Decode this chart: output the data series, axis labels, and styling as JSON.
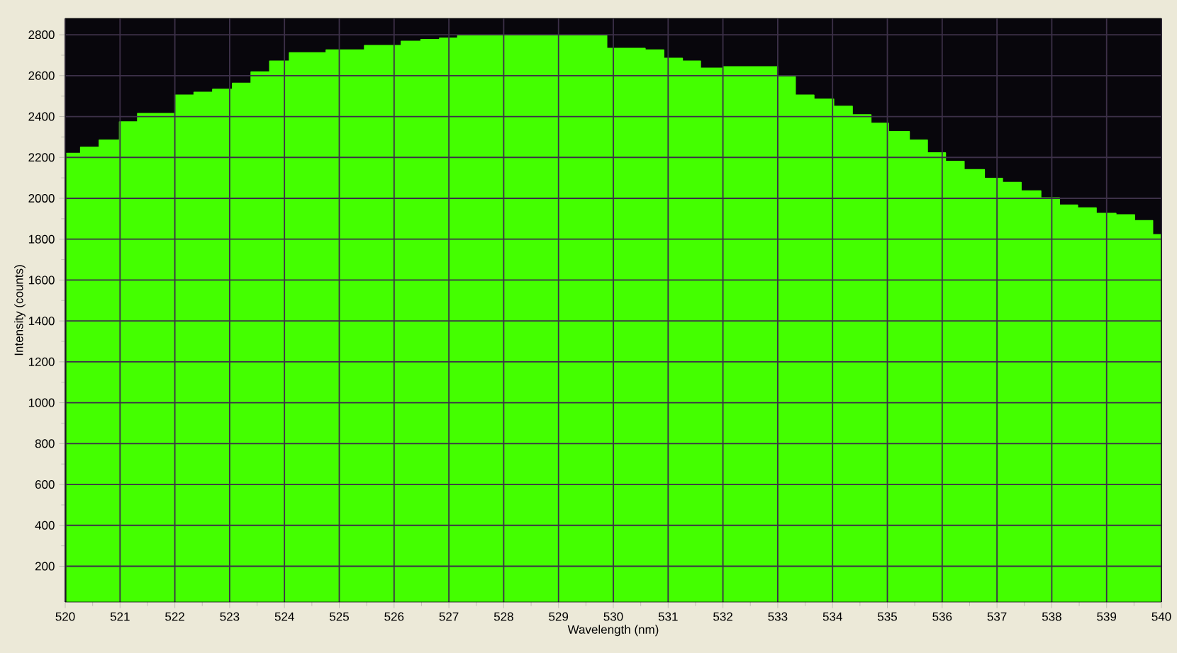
{
  "chart_data": {
    "type": "step",
    "xlabel": "Wavelength (nm)",
    "ylabel": "Intensity (counts)",
    "color": "#44ff00",
    "grid": true,
    "xlim": [
      520,
      540
    ],
    "ylim": [
      25,
      2880
    ],
    "xticks": [
      520,
      521,
      522,
      523,
      524,
      525,
      526,
      527,
      528,
      529,
      530,
      531,
      532,
      533,
      534,
      535,
      536,
      537,
      538,
      539,
      540
    ],
    "yticks": [
      200,
      400,
      600,
      800,
      1000,
      1200,
      1400,
      1600,
      1800,
      2000,
      2200,
      2400,
      2600,
      2800
    ],
    "x": [
      520.02,
      520.28,
      520.62,
      520.99,
      521.32,
      522.0,
      522.35,
      522.69,
      523.05,
      523.39,
      523.73,
      524.09,
      524.76,
      525.46,
      526.13,
      526.49,
      526.83,
      527.16,
      529.88,
      530.58,
      530.92,
      531.26,
      531.59,
      532.0,
      533.0,
      533.32,
      533.66,
      534.02,
      534.36,
      534.7,
      535.02,
      535.4,
      535.73,
      536.06,
      536.4,
      536.77,
      537.1,
      537.44,
      537.8,
      538.14,
      538.47,
      538.81,
      539.17,
      539.51,
      539.84,
      540
    ],
    "values": [
      2220,
      2250,
      2285,
      2374,
      2415,
      2505,
      2519,
      2533,
      2563,
      2618,
      2671,
      2712,
      2726,
      2747,
      2768,
      2777,
      2784,
      2797,
      2733,
      2726,
      2685,
      2671,
      2636,
      2643,
      2595,
      2505,
      2485,
      2450,
      2409,
      2367,
      2326,
      2285,
      2222,
      2181,
      2140,
      2098,
      2078,
      2036,
      2002,
      1967,
      1953,
      1926,
      1919,
      1891,
      1822,
      1822
    ]
  }
}
